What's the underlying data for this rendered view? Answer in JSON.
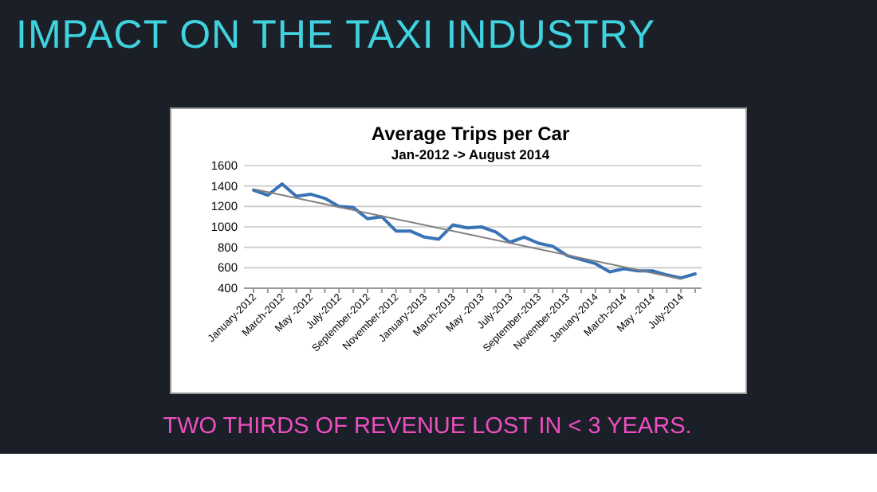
{
  "chart_data": {
    "type": "line",
    "title": "Average Trips per Car",
    "subtitle": "Jan-2012 -> August 2014",
    "annotations": [
      "IMPACT ON THE TAXI INDUSTRY",
      "TWO THIRDS OF REVENUE LOST IN < 3 YEARS."
    ],
    "categories": [
      "January-2012",
      null,
      "March-2012",
      null,
      "May -2012",
      null,
      "July-2012",
      null,
      "September-2012",
      null,
      "November-2012",
      null,
      "January-2013",
      null,
      "March-2013",
      null,
      "May -2013",
      null,
      "July-2013",
      null,
      "September-2013",
      null,
      "November-2013",
      null,
      "January-2014",
      null,
      "March-2014",
      null,
      "May -2014",
      null,
      "July-2014",
      null
    ],
    "series": [
      {
        "color": "#3a73b5",
        "values": [
          1360,
          1310,
          1420,
          1300,
          1320,
          1280,
          1200,
          1190,
          1080,
          1100,
          960,
          960,
          900,
          880,
          1020,
          990,
          1000,
          950,
          850,
          900,
          840,
          810,
          720,
          680,
          640,
          560,
          590,
          570,
          570,
          530,
          500,
          540
        ]
      },
      {
        "type": "line",
        "color": "#808080",
        "x": [
          "January-2012",
          "July-2014"
        ],
        "values": [
          1370,
          490
        ]
      }
    ],
    "ylim": [
      400,
      1600
    ],
    "yticks": [
      400,
      600,
      800,
      1000,
      1200,
      1400,
      1600
    ],
    "grid": "y",
    "marker": "none",
    "line_style": "solid"
  }
}
